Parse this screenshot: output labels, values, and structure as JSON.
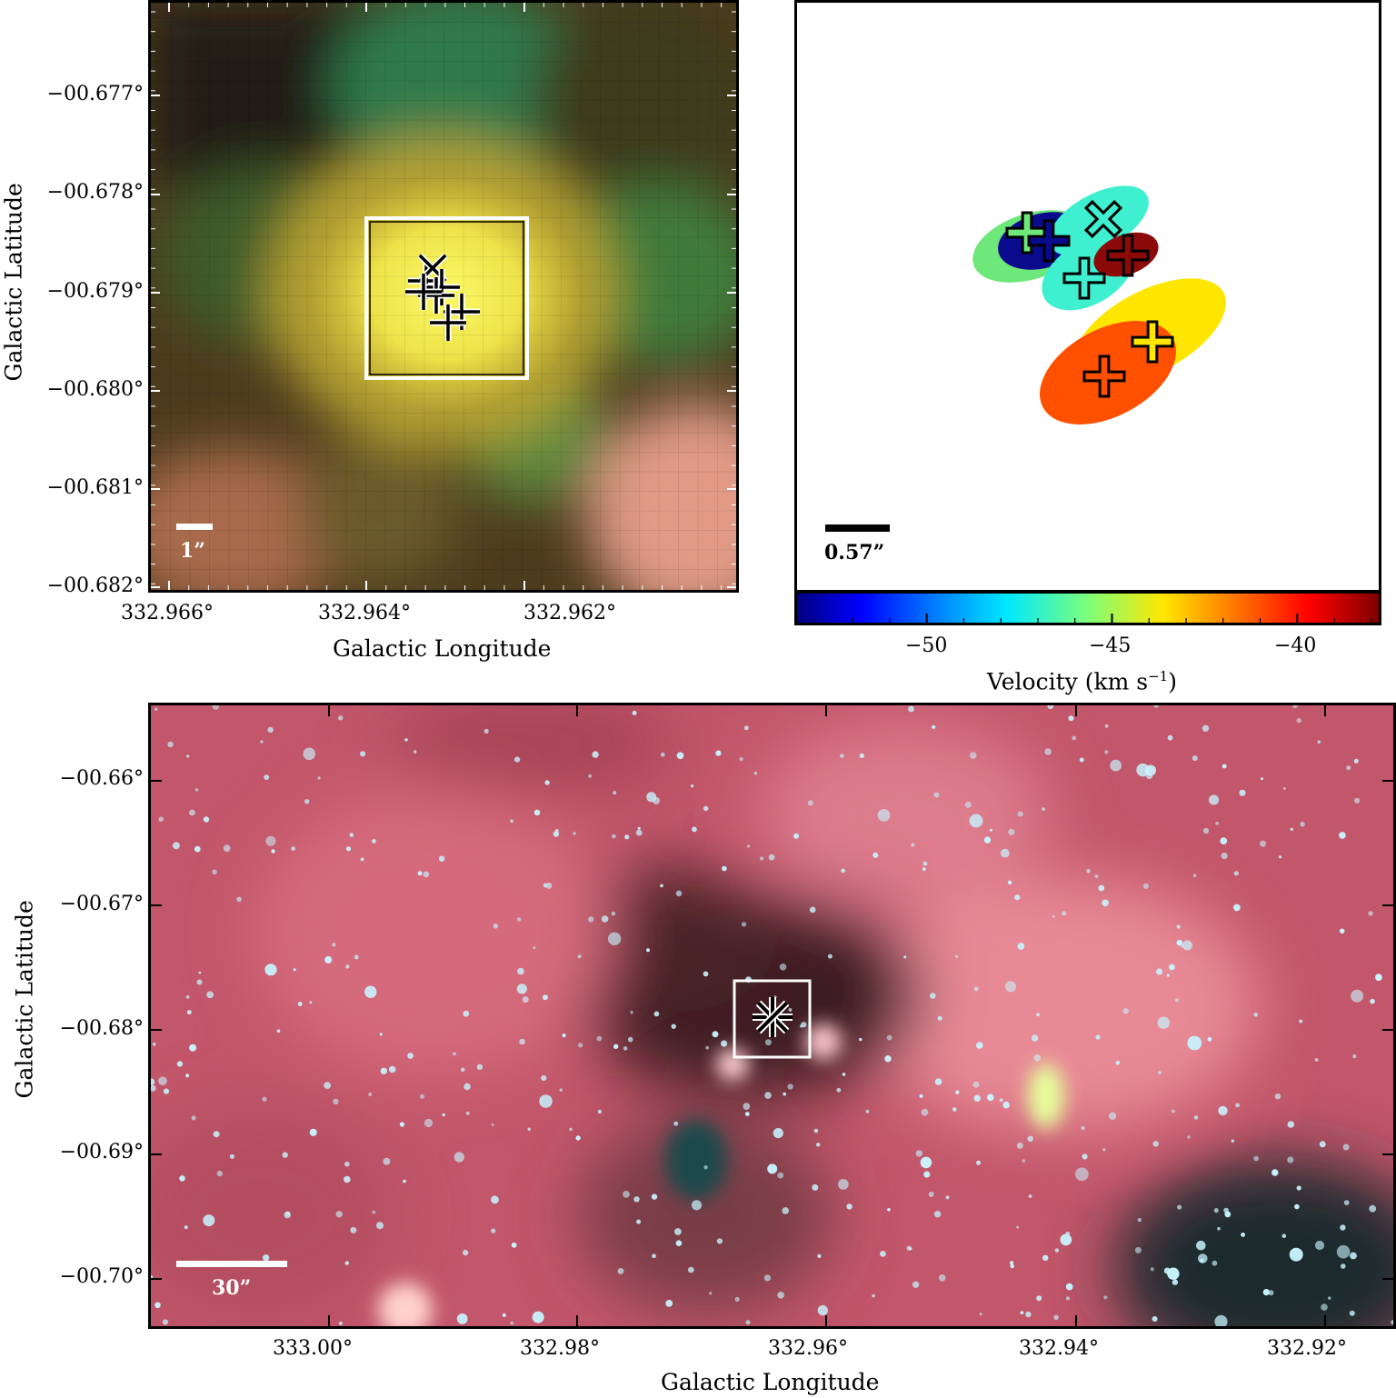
{
  "panel_top_left": {
    "y_ticks": [
      "−00.677°",
      "−00.678°",
      "−00.679°",
      "−00.680°",
      "−00.681°",
      "−00.682°"
    ],
    "x_ticks": [
      "332.966°",
      "332.964°",
      "332.962°"
    ],
    "xlabel": "Galactic Longitude",
    "ylabel": "Galactic Latitude",
    "scalebar_label": "1”",
    "colors": {
      "scalebar": "#ffffff",
      "box": "#ffffff"
    }
  },
  "panel_top_right": {
    "scalebar_label": "0.57”",
    "colorbar": {
      "ticks": [
        "−50",
        "−45",
        "−40"
      ],
      "tick_values": [
        -50,
        -45,
        -40
      ],
      "range": [
        -53.5,
        -37.8
      ],
      "label": "Velocity (km s",
      "label_sup": "−1",
      "label_close": ")",
      "colormap": "jet"
    },
    "sources": [
      {
        "marker": "plus",
        "color": "#6ee87a"
      },
      {
        "marker": "plus",
        "color": "#0a0a8c"
      },
      {
        "marker": "cross",
        "color": "#3ff0d0"
      },
      {
        "marker": "plus",
        "color": "#3ff0d0"
      },
      {
        "marker": "plus",
        "color": "#8c0a0a"
      },
      {
        "marker": "plus",
        "color": "#ffe600"
      },
      {
        "marker": "plus",
        "color": "#ff5000"
      }
    ]
  },
  "panel_bottom": {
    "y_ticks": [
      "−00.66°",
      "−00.67°",
      "−00.68°",
      "−00.69°",
      "−00.70°"
    ],
    "x_ticks": [
      "333.00°",
      "332.98°",
      "332.96°",
      "332.94°",
      "332.92°"
    ],
    "xlabel": "Galactic Longitude",
    "ylabel": "Galactic Latitude",
    "scalebar_label": "30”",
    "colors": {
      "background": "#c2566a",
      "stars": "#c8f4ff",
      "box": "#ffffff"
    }
  }
}
